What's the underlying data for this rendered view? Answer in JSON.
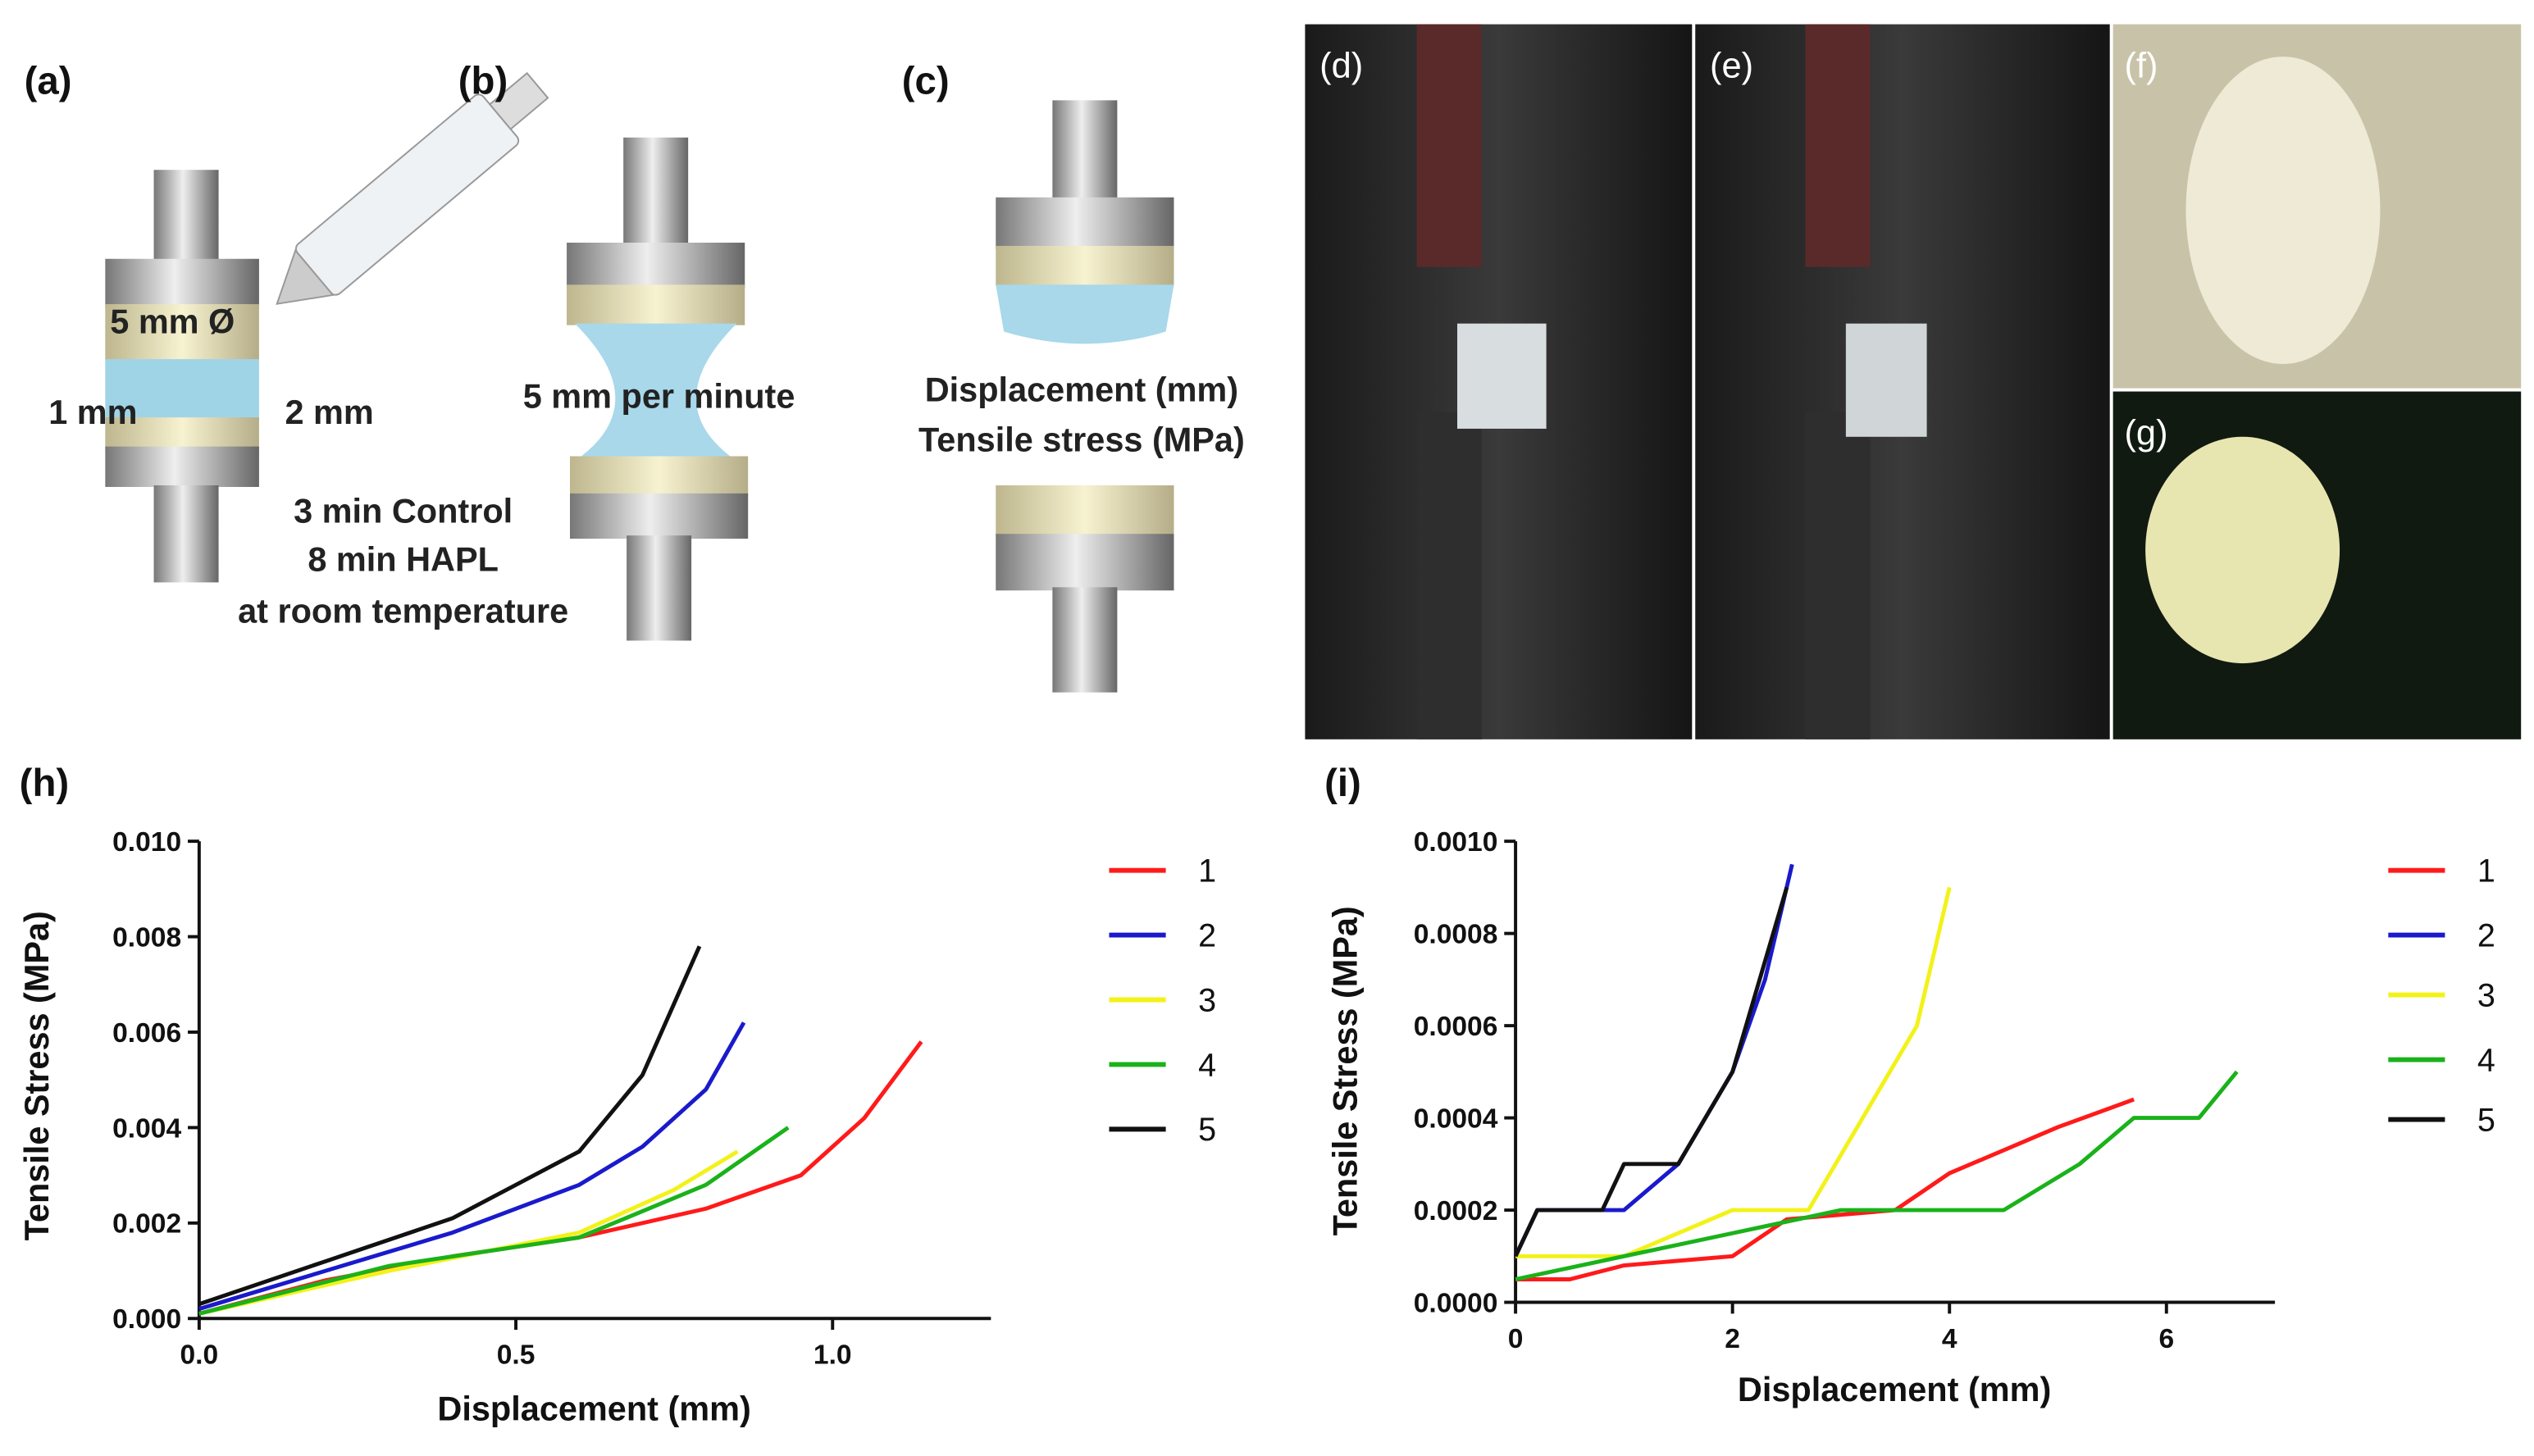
{
  "figure": {
    "panel_labels": [
      "(a)",
      "(b)",
      "(c)",
      "(d)",
      "(e)",
      "(f)",
      "(g)",
      "(h)",
      "(i)"
    ],
    "annotations": [
      "5 mm Ø",
      "1 mm",
      "2 mm",
      "3 min Control",
      "8 min HAPL",
      "at room temperature",
      "5 mm per minute",
      "Displacement (mm)",
      "Tensile stress (MPa)"
    ]
  },
  "chart_data": [
    {
      "type": "line",
      "xlabel": "Displacement (mm)",
      "ylabel": "Tensile Stress (MPa)",
      "xlim": [
        0,
        1.25
      ],
      "xticks": [
        {
          "value": 0,
          "label": "0.0"
        },
        0.5,
        {
          "value": 1,
          "label": "1.0"
        }
      ],
      "ylim": [
        0,
        0.01
      ],
      "yticks": [
        {
          "value": 0,
          "label": "0.000"
        },
        0.002,
        0.004,
        0.006,
        0.008,
        {
          "value": 0.01,
          "label": "0.010"
        }
      ],
      "legend": "right",
      "series": [
        {
          "name": "1",
          "color": "#ff1a1a",
          "x": [
            0,
            0.2,
            0.4,
            0.6,
            0.8,
            0.95,
            1.05,
            1.14
          ],
          "values": [
            0.0001,
            0.0008,
            0.0013,
            0.0017,
            0.0023,
            0.003,
            0.0042,
            0.0058
          ]
        },
        {
          "name": "2",
          "color": "#1a1acc",
          "x": [
            0,
            0.2,
            0.4,
            0.6,
            0.7,
            0.8,
            0.86
          ],
          "values": [
            0.0002,
            0.001,
            0.0018,
            0.0028,
            0.0036,
            0.0048,
            0.0062
          ]
        },
        {
          "name": "3",
          "color": "#f2f21a",
          "x": [
            0,
            0.3,
            0.6,
            0.75,
            0.85
          ],
          "values": [
            0.0001,
            0.001,
            0.0018,
            0.0027,
            0.0035
          ]
        },
        {
          "name": "4",
          "color": "#1ab21a",
          "x": [
            0,
            0.3,
            0.6,
            0.8,
            0.93
          ],
          "values": [
            0.0001,
            0.0011,
            0.0017,
            0.0028,
            0.004
          ]
        },
        {
          "name": "5",
          "color": "#111111",
          "x": [
            0,
            0.2,
            0.4,
            0.6,
            0.7,
            0.79
          ],
          "values": [
            0.0003,
            0.0012,
            0.0021,
            0.0035,
            0.0051,
            0.0078
          ]
        }
      ]
    },
    {
      "type": "line",
      "xlabel": "Displacement (mm)",
      "ylabel": "Tensile Stress (MPa)",
      "xlim": [
        0,
        7
      ],
      "xticks": [
        0,
        2,
        4,
        6
      ],
      "ylim": [
        0,
        0.001
      ],
      "yticks": [
        {
          "value": 0,
          "label": "0.0000"
        },
        {
          "value": 0.0002,
          "label": "0.0002"
        },
        {
          "value": 0.0004,
          "label": "0.0004"
        },
        {
          "value": 0.0006,
          "label": "0.0006"
        },
        {
          "value": 0.0008,
          "label": "0.0008"
        },
        {
          "value": 0.001,
          "label": "0.0010"
        }
      ],
      "legend": "right",
      "series": [
        {
          "name": "1",
          "color": "#ff1a1a",
          "x": [
            0,
            0.5,
            1,
            2,
            2.5,
            3.5,
            4,
            4.5,
            5,
            5.7
          ],
          "values": [
            5e-05,
            5e-05,
            8e-05,
            0.0001,
            0.00018,
            0.0002,
            0.00028,
            0.00033,
            0.00038,
            0.00044
          ]
        },
        {
          "name": "2",
          "color": "#1a1acc",
          "x": [
            0,
            0.2,
            1,
            1.5,
            2,
            2.3,
            2.55
          ],
          "values": [
            0.0001,
            0.0002,
            0.0002,
            0.0003,
            0.0005,
            0.0007,
            0.00095
          ]
        },
        {
          "name": "3",
          "color": "#f2f21a",
          "x": [
            0,
            1,
            2,
            2.7,
            3.2,
            3.7,
            4
          ],
          "values": [
            0.0001,
            0.0001,
            0.0002,
            0.0002,
            0.0004,
            0.0006,
            0.0009
          ]
        },
        {
          "name": "4",
          "color": "#1ab21a",
          "x": [
            0,
            1,
            2,
            3,
            4.5,
            5.2,
            5.7,
            6.3,
            6.65
          ],
          "values": [
            5e-05,
            0.0001,
            0.00015,
            0.0002,
            0.0002,
            0.0003,
            0.0004,
            0.0004,
            0.0005
          ]
        },
        {
          "name": "5",
          "color": "#111111",
          "x": [
            0,
            0.2,
            0.8,
            1,
            1.5,
            2,
            2.5
          ],
          "values": [
            0.0001,
            0.0002,
            0.0002,
            0.0003,
            0.0003,
            0.0005,
            0.0009
          ]
        }
      ]
    }
  ]
}
